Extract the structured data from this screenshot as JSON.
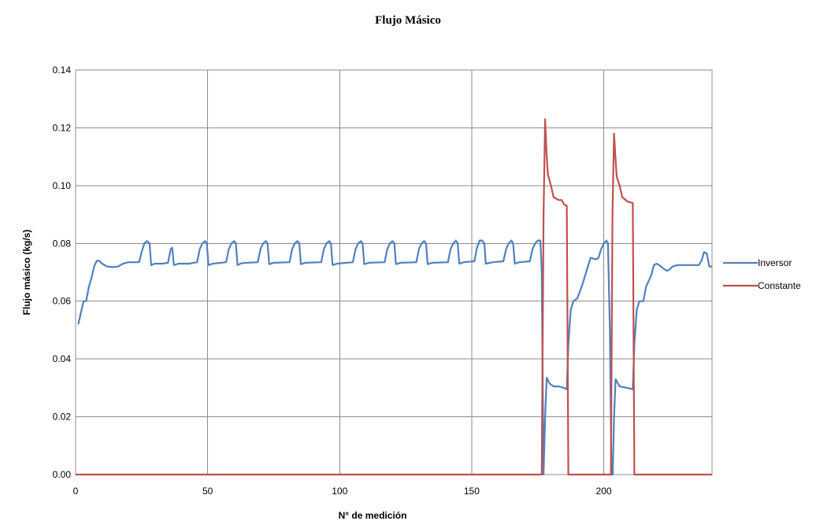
{
  "chart_data": {
    "type": "line",
    "title": "Flujo Másico",
    "xlabel": "N° de medición",
    "ylabel": "Flujo másico  (kg/s)",
    "xlim": [
      0,
      241
    ],
    "ylim": [
      0,
      0.14
    ],
    "x_ticks": [
      0,
      50,
      100,
      150,
      200
    ],
    "y_ticks": [
      "0.00",
      "0.02",
      "0.04",
      "0.06",
      "0.08",
      "0.10",
      "0.12",
      "0.14"
    ],
    "grid": true,
    "legend_position": "right",
    "series": [
      {
        "name": "Inversor",
        "color": "#4f81bd",
        "points": [
          [
            1,
            0.052
          ],
          [
            2,
            0.056
          ],
          [
            3,
            0.06
          ],
          [
            4,
            0.06
          ],
          [
            5,
            0.065
          ],
          [
            6,
            0.068
          ],
          [
            7,
            0.072
          ],
          [
            8,
            0.074
          ],
          [
            9,
            0.074
          ],
          [
            10,
            0.073
          ],
          [
            12,
            0.072
          ],
          [
            14,
            0.0718
          ],
          [
            16,
            0.072
          ],
          [
            18,
            0.073
          ],
          [
            20,
            0.0735
          ],
          [
            24,
            0.0735
          ],
          [
            25,
            0.077
          ],
          [
            26,
            0.08
          ],
          [
            27,
            0.0808
          ],
          [
            28,
            0.08
          ],
          [
            28.6,
            0.0725
          ],
          [
            30,
            0.073
          ],
          [
            33,
            0.073
          ],
          [
            35,
            0.0733
          ],
          [
            36,
            0.078
          ],
          [
            36.6,
            0.0785
          ],
          [
            37.2,
            0.0725
          ],
          [
            39,
            0.073
          ],
          [
            43,
            0.073
          ],
          [
            46,
            0.0735
          ],
          [
            47,
            0.078
          ],
          [
            48,
            0.08
          ],
          [
            49,
            0.0808
          ],
          [
            49.7,
            0.08
          ],
          [
            50.3,
            0.0725
          ],
          [
            52,
            0.073
          ],
          [
            57,
            0.0735
          ],
          [
            58,
            0.078
          ],
          [
            59,
            0.08
          ],
          [
            60,
            0.0808
          ],
          [
            60.7,
            0.08
          ],
          [
            61.3,
            0.0725
          ],
          [
            63,
            0.0732
          ],
          [
            69,
            0.0735
          ],
          [
            70,
            0.078
          ],
          [
            71,
            0.08
          ],
          [
            72,
            0.0808
          ],
          [
            72.7,
            0.08
          ],
          [
            73.3,
            0.0728
          ],
          [
            75,
            0.0733
          ],
          [
            81,
            0.0735
          ],
          [
            82,
            0.078
          ],
          [
            83,
            0.08
          ],
          [
            84,
            0.0808
          ],
          [
            84.7,
            0.08
          ],
          [
            85.3,
            0.0728
          ],
          [
            87,
            0.0733
          ],
          [
            93,
            0.0735
          ],
          [
            94,
            0.078
          ],
          [
            95,
            0.08
          ],
          [
            96,
            0.0808
          ],
          [
            96.7,
            0.08
          ],
          [
            97.3,
            0.0725
          ],
          [
            99,
            0.073
          ],
          [
            105,
            0.0735
          ],
          [
            106,
            0.078
          ],
          [
            107,
            0.08
          ],
          [
            108,
            0.0808
          ],
          [
            108.7,
            0.08
          ],
          [
            109.3,
            0.0728
          ],
          [
            111,
            0.0733
          ],
          [
            117,
            0.0735
          ],
          [
            118,
            0.078
          ],
          [
            119,
            0.08
          ],
          [
            120,
            0.0808
          ],
          [
            120.7,
            0.08
          ],
          [
            121.3,
            0.0728
          ],
          [
            123,
            0.0733
          ],
          [
            129,
            0.0735
          ],
          [
            130,
            0.078
          ],
          [
            131,
            0.08
          ],
          [
            132,
            0.0808
          ],
          [
            132.7,
            0.08
          ],
          [
            133.3,
            0.0728
          ],
          [
            135,
            0.0733
          ],
          [
            141,
            0.0735
          ],
          [
            142,
            0.078
          ],
          [
            143,
            0.08
          ],
          [
            144,
            0.081
          ],
          [
            144.7,
            0.08
          ],
          [
            145.3,
            0.073
          ],
          [
            147,
            0.0735
          ],
          [
            151,
            0.0738
          ],
          [
            152,
            0.0785
          ],
          [
            153,
            0.081
          ],
          [
            154,
            0.081
          ],
          [
            154.8,
            0.08
          ],
          [
            155.3,
            0.073
          ],
          [
            158,
            0.0735
          ],
          [
            162,
            0.0738
          ],
          [
            163,
            0.078
          ],
          [
            164,
            0.08
          ],
          [
            165,
            0.081
          ],
          [
            165.7,
            0.08
          ],
          [
            166.3,
            0.073
          ],
          [
            168,
            0.0735
          ],
          [
            172,
            0.0738
          ],
          [
            173,
            0.078
          ],
          [
            174,
            0.08
          ],
          [
            175,
            0.081
          ],
          [
            176,
            0.081
          ],
          [
            176.5,
            0.07
          ],
          [
            177.2,
            0.0
          ],
          [
            177.8,
            0.02
          ],
          [
            178.4,
            0.0335
          ],
          [
            179.5,
            0.0315
          ],
          [
            181,
            0.0305
          ],
          [
            183,
            0.0305
          ],
          [
            185,
            0.03
          ],
          [
            186,
            0.0295
          ],
          [
            186.6,
            0.045
          ],
          [
            187.5,
            0.057
          ],
          [
            188.5,
            0.06
          ],
          [
            190,
            0.061
          ],
          [
            192,
            0.066
          ],
          [
            194,
            0.072
          ],
          [
            195,
            0.075
          ],
          [
            197,
            0.0745
          ],
          [
            198,
            0.075
          ],
          [
            199,
            0.078
          ],
          [
            200,
            0.08
          ],
          [
            201,
            0.081
          ],
          [
            201.6,
            0.08
          ],
          [
            202.3,
            0.05
          ],
          [
            202.9,
            0.0
          ],
          [
            203.4,
            0.0
          ],
          [
            203.9,
            0.02
          ],
          [
            204.5,
            0.033
          ],
          [
            206,
            0.0305
          ],
          [
            209,
            0.03
          ],
          [
            211,
            0.0295
          ],
          [
            211.6,
            0.045
          ],
          [
            212.5,
            0.057
          ],
          [
            213.5,
            0.06
          ],
          [
            215,
            0.06
          ],
          [
            216,
            0.065
          ],
          [
            218,
            0.069
          ],
          [
            219,
            0.0725
          ],
          [
            220,
            0.073
          ],
          [
            221,
            0.0725
          ],
          [
            223,
            0.071
          ],
          [
            224,
            0.0705
          ],
          [
            225,
            0.071
          ],
          [
            226,
            0.072
          ],
          [
            228,
            0.0725
          ],
          [
            236,
            0.0725
          ],
          [
            237,
            0.074
          ],
          [
            238,
            0.077
          ],
          [
            239,
            0.0765
          ],
          [
            240,
            0.072
          ],
          [
            241,
            0.072
          ]
        ]
      },
      {
        "name": "Constante",
        "color": "#c0504d",
        "points": [
          [
            0,
            0
          ],
          [
            176.5,
            0
          ],
          [
            177.2,
            0.09
          ],
          [
            177.8,
            0.123
          ],
          [
            178.3,
            0.112
          ],
          [
            178.8,
            0.104
          ],
          [
            180,
            0.1
          ],
          [
            181,
            0.096
          ],
          [
            183,
            0.095
          ],
          [
            184,
            0.095
          ],
          [
            185,
            0.0935
          ],
          [
            186,
            0.093
          ],
          [
            186.6,
            0.0
          ],
          [
            202.7,
            0.0
          ],
          [
            203.3,
            0.09
          ],
          [
            203.9,
            0.118
          ],
          [
            204.4,
            0.11
          ],
          [
            204.9,
            0.103
          ],
          [
            206,
            0.1
          ],
          [
            207,
            0.096
          ],
          [
            209,
            0.0945
          ],
          [
            211,
            0.094
          ],
          [
            211.6,
            0.0
          ],
          [
            241,
            0.0
          ]
        ]
      }
    ]
  }
}
